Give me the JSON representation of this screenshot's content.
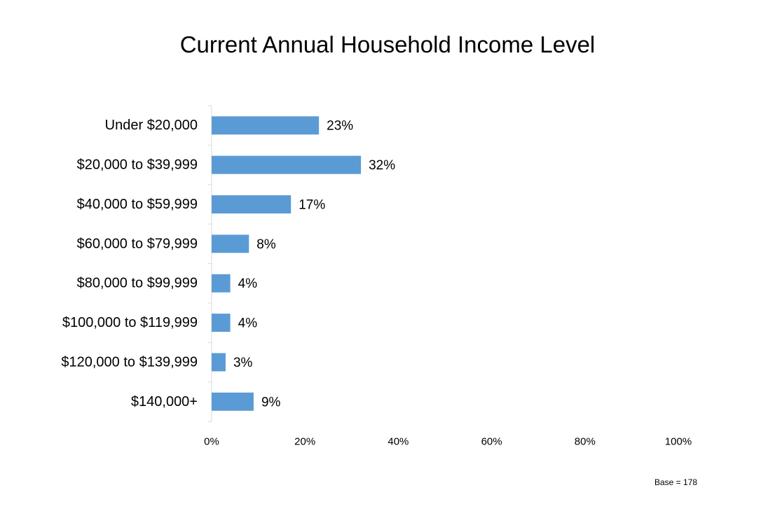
{
  "chart_data": {
    "type": "bar",
    "orientation": "horizontal",
    "title": "Current Annual Household Income Level",
    "categories": [
      "Under $20,000",
      "$20,000 to $39,999",
      "$40,000 to $59,999",
      "$60,000 to $79,999",
      "$80,000 to $99,999",
      "$100,000 to $119,999",
      "$120,000 to $139,999",
      "$140,000+"
    ],
    "values": [
      23,
      32,
      17,
      8,
      4,
      4,
      3,
      9
    ],
    "data_labels": [
      "23%",
      "32%",
      "17%",
      "8%",
      "4%",
      "4%",
      "3%",
      "9%"
    ],
    "xlim": [
      0,
      100
    ],
    "xticks": [
      0,
      20,
      40,
      60,
      80,
      100
    ],
    "xtick_labels": [
      "0%",
      "20%",
      "40%",
      "60%",
      "80%",
      "100%"
    ],
    "grid": false,
    "legend": "none",
    "bar_color": "#5b9bd5",
    "note": "Base = 178"
  }
}
